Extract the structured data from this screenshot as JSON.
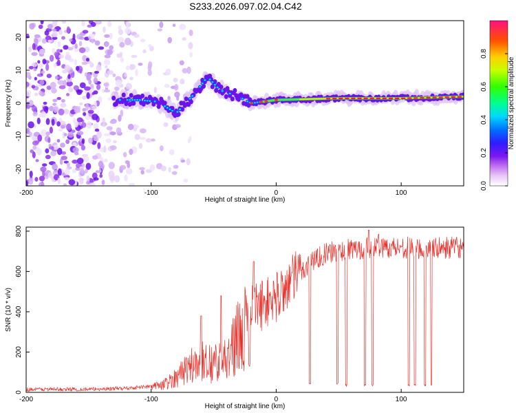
{
  "title": "S233.2026.097.02.04.C42",
  "chart_data": [
    {
      "type": "heatmap",
      "name": "spectrogram",
      "xlabel": "Height of straight line (km)",
      "ylabel": "Frequency (Hz)",
      "xlim": [
        -200,
        150
      ],
      "ylim": [
        -25,
        25
      ],
      "x_ticks": [
        -200,
        -100,
        0,
        100
      ],
      "y_ticks": [
        -20,
        -10,
        0,
        10,
        20
      ],
      "features": {
        "noise_region_x": [
          -200,
          -100
        ],
        "signal_line": [
          {
            "x": -130,
            "y": 1
          },
          {
            "x": -110,
            "y": 1
          },
          {
            "x": -95,
            "y": 0.5
          },
          {
            "x": -80,
            "y": -3
          },
          {
            "x": -65,
            "y": 3
          },
          {
            "x": -55,
            "y": 8
          },
          {
            "x": -45,
            "y": 4
          },
          {
            "x": -30,
            "y": 2
          },
          {
            "x": -20,
            "y": 0
          },
          {
            "x": 0,
            "y": 1
          },
          {
            "x": 50,
            "y": 1.5
          },
          {
            "x": 100,
            "y": 1.5
          },
          {
            "x": 150,
            "y": 2
          }
        ],
        "peak_amplitude_x": [
          40,
          150
        ]
      },
      "colorbar": {
        "label": "Normalized spectral amplitude",
        "range": [
          0,
          1
        ],
        "ticks": [
          "0.0",
          "0.2",
          "0.4",
          "0.6",
          "0.8"
        ]
      }
    },
    {
      "type": "line",
      "name": "snr",
      "xlabel": "Height of straight line (km)",
      "ylabel": "SNR (10 * v/v)",
      "xlim": [
        -200,
        150
      ],
      "ylim": [
        0,
        820
      ],
      "x_ticks": [
        -200,
        -100,
        0,
        100
      ],
      "y_ticks": [
        0,
        200,
        400,
        600,
        800
      ],
      "color": "#e8302a",
      "envelope": [
        {
          "x": -200,
          "y": 15
        },
        {
          "x": -150,
          "y": 15
        },
        {
          "x": -120,
          "y": 20
        },
        {
          "x": -100,
          "y": 30
        },
        {
          "x": -90,
          "y": 45
        },
        {
          "x": -80,
          "y": 90
        },
        {
          "x": -70,
          "y": 150
        },
        {
          "x": -60,
          "y": 180
        },
        {
          "x": -50,
          "y": 170
        },
        {
          "x": -40,
          "y": 200
        },
        {
          "x": -30,
          "y": 320
        },
        {
          "x": -20,
          "y": 410
        },
        {
          "x": -10,
          "y": 440
        },
        {
          "x": 0,
          "y": 470
        },
        {
          "x": 10,
          "y": 540
        },
        {
          "x": 20,
          "y": 600
        },
        {
          "x": 30,
          "y": 660
        },
        {
          "x": 40,
          "y": 690
        },
        {
          "x": 60,
          "y": 710
        },
        {
          "x": 80,
          "y": 720
        },
        {
          "x": 100,
          "y": 720
        },
        {
          "x": 120,
          "y": 715
        },
        {
          "x": 150,
          "y": 720
        }
      ],
      "dropouts": [
        {
          "x": 27,
          "y": 40
        },
        {
          "x": 49,
          "y": 40
        },
        {
          "x": 56,
          "y": 30
        },
        {
          "x": 71,
          "y": 30
        },
        {
          "x": 77,
          "y": 30
        },
        {
          "x": 106,
          "y": 30
        },
        {
          "x": 111,
          "y": 30
        },
        {
          "x": 119,
          "y": 30
        },
        {
          "x": 124,
          "y": 30
        }
      ],
      "spikes": [
        {
          "x": -60,
          "y": 380
        },
        {
          "x": -44,
          "y": 480
        },
        {
          "x": -18,
          "y": 650
        },
        {
          "x": 74,
          "y": 805
        },
        {
          "x": 82,
          "y": 785
        }
      ]
    }
  ]
}
